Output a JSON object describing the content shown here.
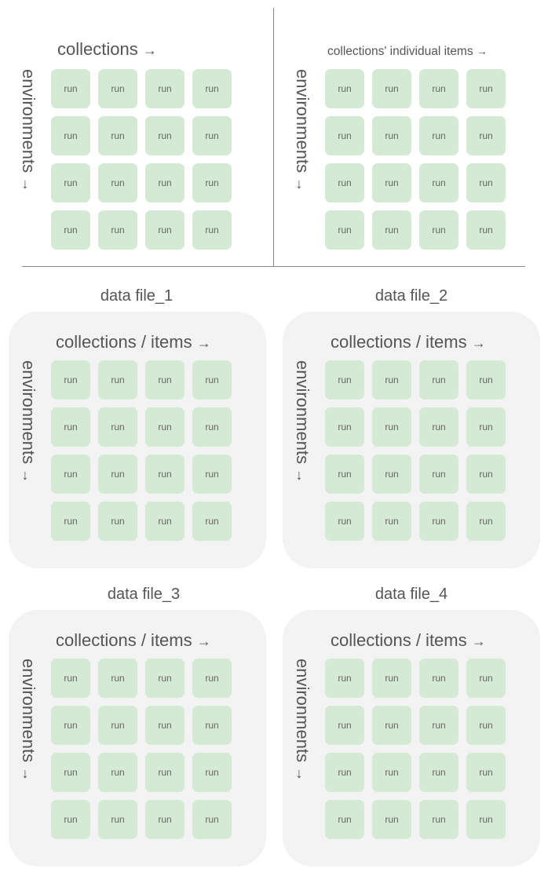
{
  "arrows": {
    "right": "→",
    "down": "→"
  },
  "top_left": {
    "x_label": "collections",
    "y_label": "environments",
    "cells": [
      "run",
      "run",
      "run",
      "run",
      "run",
      "run",
      "run",
      "run",
      "run",
      "run",
      "run",
      "run",
      "run",
      "run",
      "run",
      "run"
    ]
  },
  "top_right": {
    "x_label": "collections' individual items",
    "y_label": "environments",
    "cells": [
      "run",
      "run",
      "run",
      "run",
      "run",
      "run",
      "run",
      "run",
      "run",
      "run",
      "run",
      "run",
      "run",
      "run",
      "run",
      "run"
    ]
  },
  "panels": [
    {
      "title": "data file_1",
      "x_label": "collections / items",
      "y_label": "environments",
      "cells": [
        "run",
        "run",
        "run",
        "run",
        "run",
        "run",
        "run",
        "run",
        "run",
        "run",
        "run",
        "run",
        "run",
        "run",
        "run",
        "run"
      ]
    },
    {
      "title": "data file_2",
      "x_label": "collections / items",
      "y_label": "environments",
      "cells": [
        "run",
        "run",
        "run",
        "run",
        "run",
        "run",
        "run",
        "run",
        "run",
        "run",
        "run",
        "run",
        "run",
        "run",
        "run",
        "run"
      ]
    },
    {
      "title": "data file_3",
      "x_label": "collections / items",
      "y_label": "environments",
      "cells": [
        "run",
        "run",
        "run",
        "run",
        "run",
        "run",
        "run",
        "run",
        "run",
        "run",
        "run",
        "run",
        "run",
        "run",
        "run",
        "run"
      ]
    },
    {
      "title": "data file_4",
      "x_label": "collections / items",
      "y_label": "environments",
      "cells": [
        "run",
        "run",
        "run",
        "run",
        "run",
        "run",
        "run",
        "run",
        "run",
        "run",
        "run",
        "run",
        "run",
        "run",
        "run",
        "run"
      ]
    }
  ],
  "colors": {
    "cell_fill": "#d5ead4",
    "panel_fill": "#f3f3f3",
    "text": "#555555",
    "divider": "#888888"
  }
}
